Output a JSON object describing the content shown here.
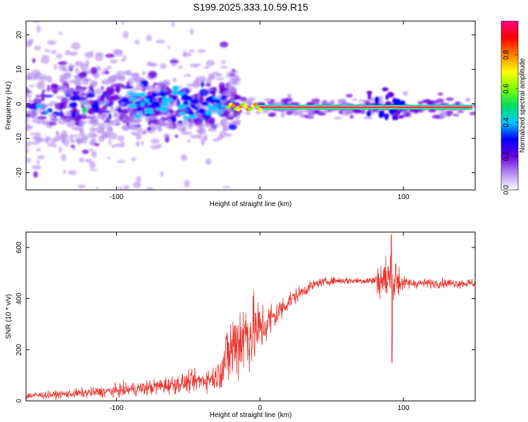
{
  "title": "S199.2025.333.10.59.R15",
  "chart_data": [
    {
      "type": "heatmap",
      "name": "spectrogram",
      "xlabel": "Height of straight line (km)",
      "ylabel": "Frequency (Hz)",
      "xlim": [
        -163,
        150
      ],
      "ylim": [
        -25,
        24
      ],
      "x_ticks": [
        -100,
        0,
        100
      ],
      "y_ticks": [
        -20,
        -10,
        0,
        10,
        20
      ],
      "colorbar": {
        "label": "Normalized spectral amplitude",
        "range": [
          0,
          1
        ],
        "ticks": [
          0.0,
          0.2,
          0.4,
          0.6,
          0.8
        ],
        "colormap": [
          "#ffffff",
          "#b48cf0",
          "#6a00e0",
          "#0000ff",
          "#00c8ff",
          "#00e060",
          "#80ff00",
          "#ffff00",
          "#ff8000",
          "#ff0000",
          "#ff0080"
        ]
      },
      "features": {
        "scatter_region_km": [
          -163,
          -25
        ],
        "scatter_freq_spread_hz": [
          -25,
          24
        ],
        "main_line_freq_hz": -1,
        "main_line_start_km": 0,
        "main_line_end_km": 148,
        "main_line_amplitude": 0.95
      }
    },
    {
      "type": "line",
      "name": "snr",
      "xlabel": "Height of straight line (km)",
      "ylabel": "SNR (10 * v/v)",
      "xlim": [
        -163,
        150
      ],
      "ylim": [
        0,
        660
      ],
      "x_ticks": [
        -100,
        0,
        100
      ],
      "y_ticks": [
        0,
        200,
        400,
        600
      ],
      "color": "#e8352e",
      "envelope": {
        "x": [
          -163,
          -140,
          -110,
          -80,
          -60,
          -40,
          -30,
          -25,
          -20,
          -15,
          -10,
          -5,
          0,
          10,
          20,
          30,
          40,
          50,
          60,
          70,
          80,
          83,
          87,
          90,
          92,
          94,
          97,
          100,
          110,
          120,
          130,
          140,
          150
        ],
        "y": [
          20,
          25,
          35,
          50,
          65,
          80,
          95,
          150,
          200,
          240,
          260,
          270,
          280,
          330,
          390,
          430,
          460,
          470,
          470,
          470,
          470,
          475,
          470,
          480,
          460,
          480,
          470,
          460,
          460,
          460,
          460,
          460,
          460
        ],
        "noise": [
          12,
          12,
          18,
          25,
          30,
          35,
          40,
          90,
          130,
          140,
          140,
          120,
          90,
          50,
          30,
          20,
          15,
          12,
          12,
          12,
          15,
          60,
          80,
          100,
          150,
          90,
          60,
          20,
          15,
          15,
          15,
          15,
          15
        ]
      },
      "spike_min": {
        "x": 92,
        "y": 150
      },
      "spike_max": {
        "x": 92,
        "y": 650
      }
    }
  ]
}
